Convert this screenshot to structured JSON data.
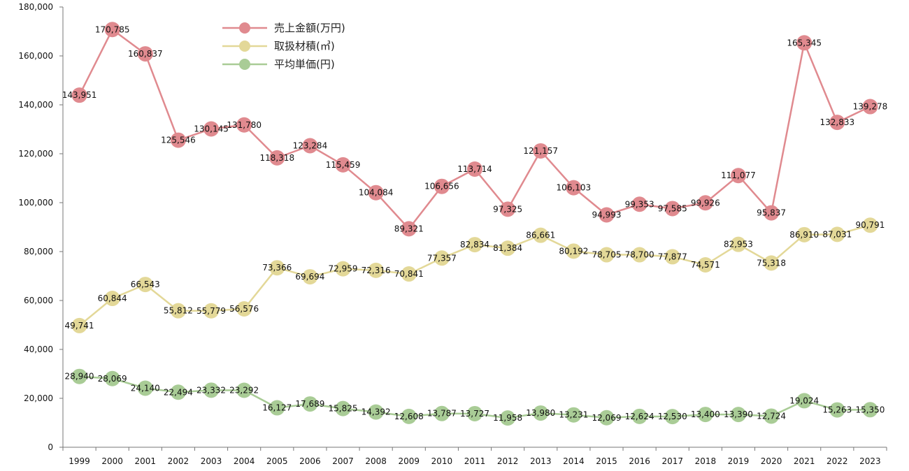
{
  "chart_data": {
    "type": "line",
    "title": "",
    "xlabel": "",
    "ylabel": "",
    "ylim": [
      0,
      180000
    ],
    "yticks": [
      0,
      20000,
      40000,
      60000,
      80000,
      100000,
      120000,
      140000,
      160000,
      180000
    ],
    "ytick_labels": [
      "0",
      "20,000",
      "40,000",
      "60,000",
      "80,000",
      "100,000",
      "120,000",
      "140,000",
      "160,000",
      "180,000"
    ],
    "grid": false,
    "legend_position": "top-center",
    "categories": [
      "1999",
      "2000",
      "2001",
      "2002",
      "2003",
      "2004",
      "2005",
      "2006",
      "2007",
      "2008",
      "2009",
      "2010",
      "2011",
      "2012",
      "2013",
      "2014",
      "2015",
      "2016",
      "2017",
      "2018",
      "2019",
      "2020",
      "2021",
      "2022",
      "2023"
    ],
    "series": [
      {
        "name": "売上金額(万円)",
        "color": "#e08a8f",
        "values": [
          143951,
          170785,
          160837,
          125546,
          130145,
          131780,
          118318,
          123284,
          115459,
          104084,
          89321,
          106656,
          113714,
          97325,
          121157,
          106103,
          94993,
          99353,
          97585,
          99926,
          111077,
          95837,
          165345,
          132833,
          139278
        ],
        "labels": [
          "143,951",
          "170,785",
          "160,837",
          "125,546",
          "130,145",
          "131,780",
          "118,318",
          "123,284",
          "115,459",
          "104,084",
          "89,321",
          "106,656",
          "113,714",
          "97,325",
          "121,157",
          "106,103",
          "94,993",
          "99,353",
          "97,585",
          "99,926",
          "111,077",
          "95,837",
          "165,345",
          "132,833",
          "139,278"
        ]
      },
      {
        "name": "取扱材積(㎥)",
        "color": "#e3d898",
        "values": [
          49741,
          60844,
          66543,
          55812,
          55779,
          56576,
          73366,
          69694,
          72959,
          72316,
          70841,
          77357,
          82834,
          81384,
          86661,
          80192,
          78705,
          78700,
          77877,
          74571,
          82953,
          75318,
          86910,
          87031,
          90791
        ],
        "labels": [
          "49,741",
          "60,844",
          "66,543",
          "55,812",
          "55,779",
          "56,576",
          "73,366",
          "69,694",
          "72,959",
          "72,316",
          "70,841",
          "77,357",
          "82,834",
          "81,384",
          "86,661",
          "80,192",
          "78,705",
          "78,700",
          "77,877",
          "74,571",
          "82,953",
          "75,318",
          "86,910",
          "87,031",
          "90,791"
        ]
      },
      {
        "name": "平均単価(円)",
        "color": "#a9cc96",
        "values": [
          28940,
          28069,
          24140,
          22494,
          23332,
          23292,
          16127,
          17689,
          15825,
          14392,
          12608,
          13787,
          13727,
          11958,
          13980,
          13231,
          12069,
          12624,
          12530,
          13400,
          13390,
          12724,
          19024,
          15263,
          15350
        ],
        "labels": [
          "28,940",
          "28,069",
          "24,140",
          "22,494",
          "23,332",
          "23,292",
          "16,127",
          "17,689",
          "15,825",
          "14,392",
          "12,608",
          "13,787",
          "13,727",
          "11,958",
          "13,980",
          "13,231",
          "12,069",
          "12,624",
          "12,530",
          "13,400",
          "13,390",
          "12,724",
          "19,024",
          "15,263",
          "15,350"
        ]
      }
    ]
  }
}
